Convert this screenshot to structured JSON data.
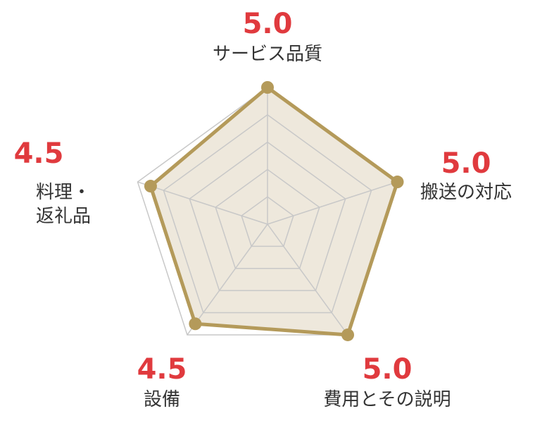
{
  "chart_data": {
    "type": "radar",
    "max": 5,
    "levels": 5,
    "axes": [
      {
        "label": "サービス品質",
        "value": 5.0,
        "value_label": "5.0"
      },
      {
        "label": "搬送の対応",
        "value": 5.0,
        "value_label": "5.0"
      },
      {
        "label": "費用とその説明",
        "value": 5.0,
        "value_label": "5.0"
      },
      {
        "label": "設備",
        "value": 4.5,
        "value_label": "4.5"
      },
      {
        "label_lines": [
          "料理・",
          "返礼品"
        ],
        "value": 4.5,
        "value_label": "4.5"
      }
    ],
    "colors": {
      "series_line": "#b49a5a",
      "series_fill": "#eee8dc",
      "grid": "#c8c8c8",
      "score_text": "#e03a3e",
      "label_text": "#333333"
    }
  }
}
